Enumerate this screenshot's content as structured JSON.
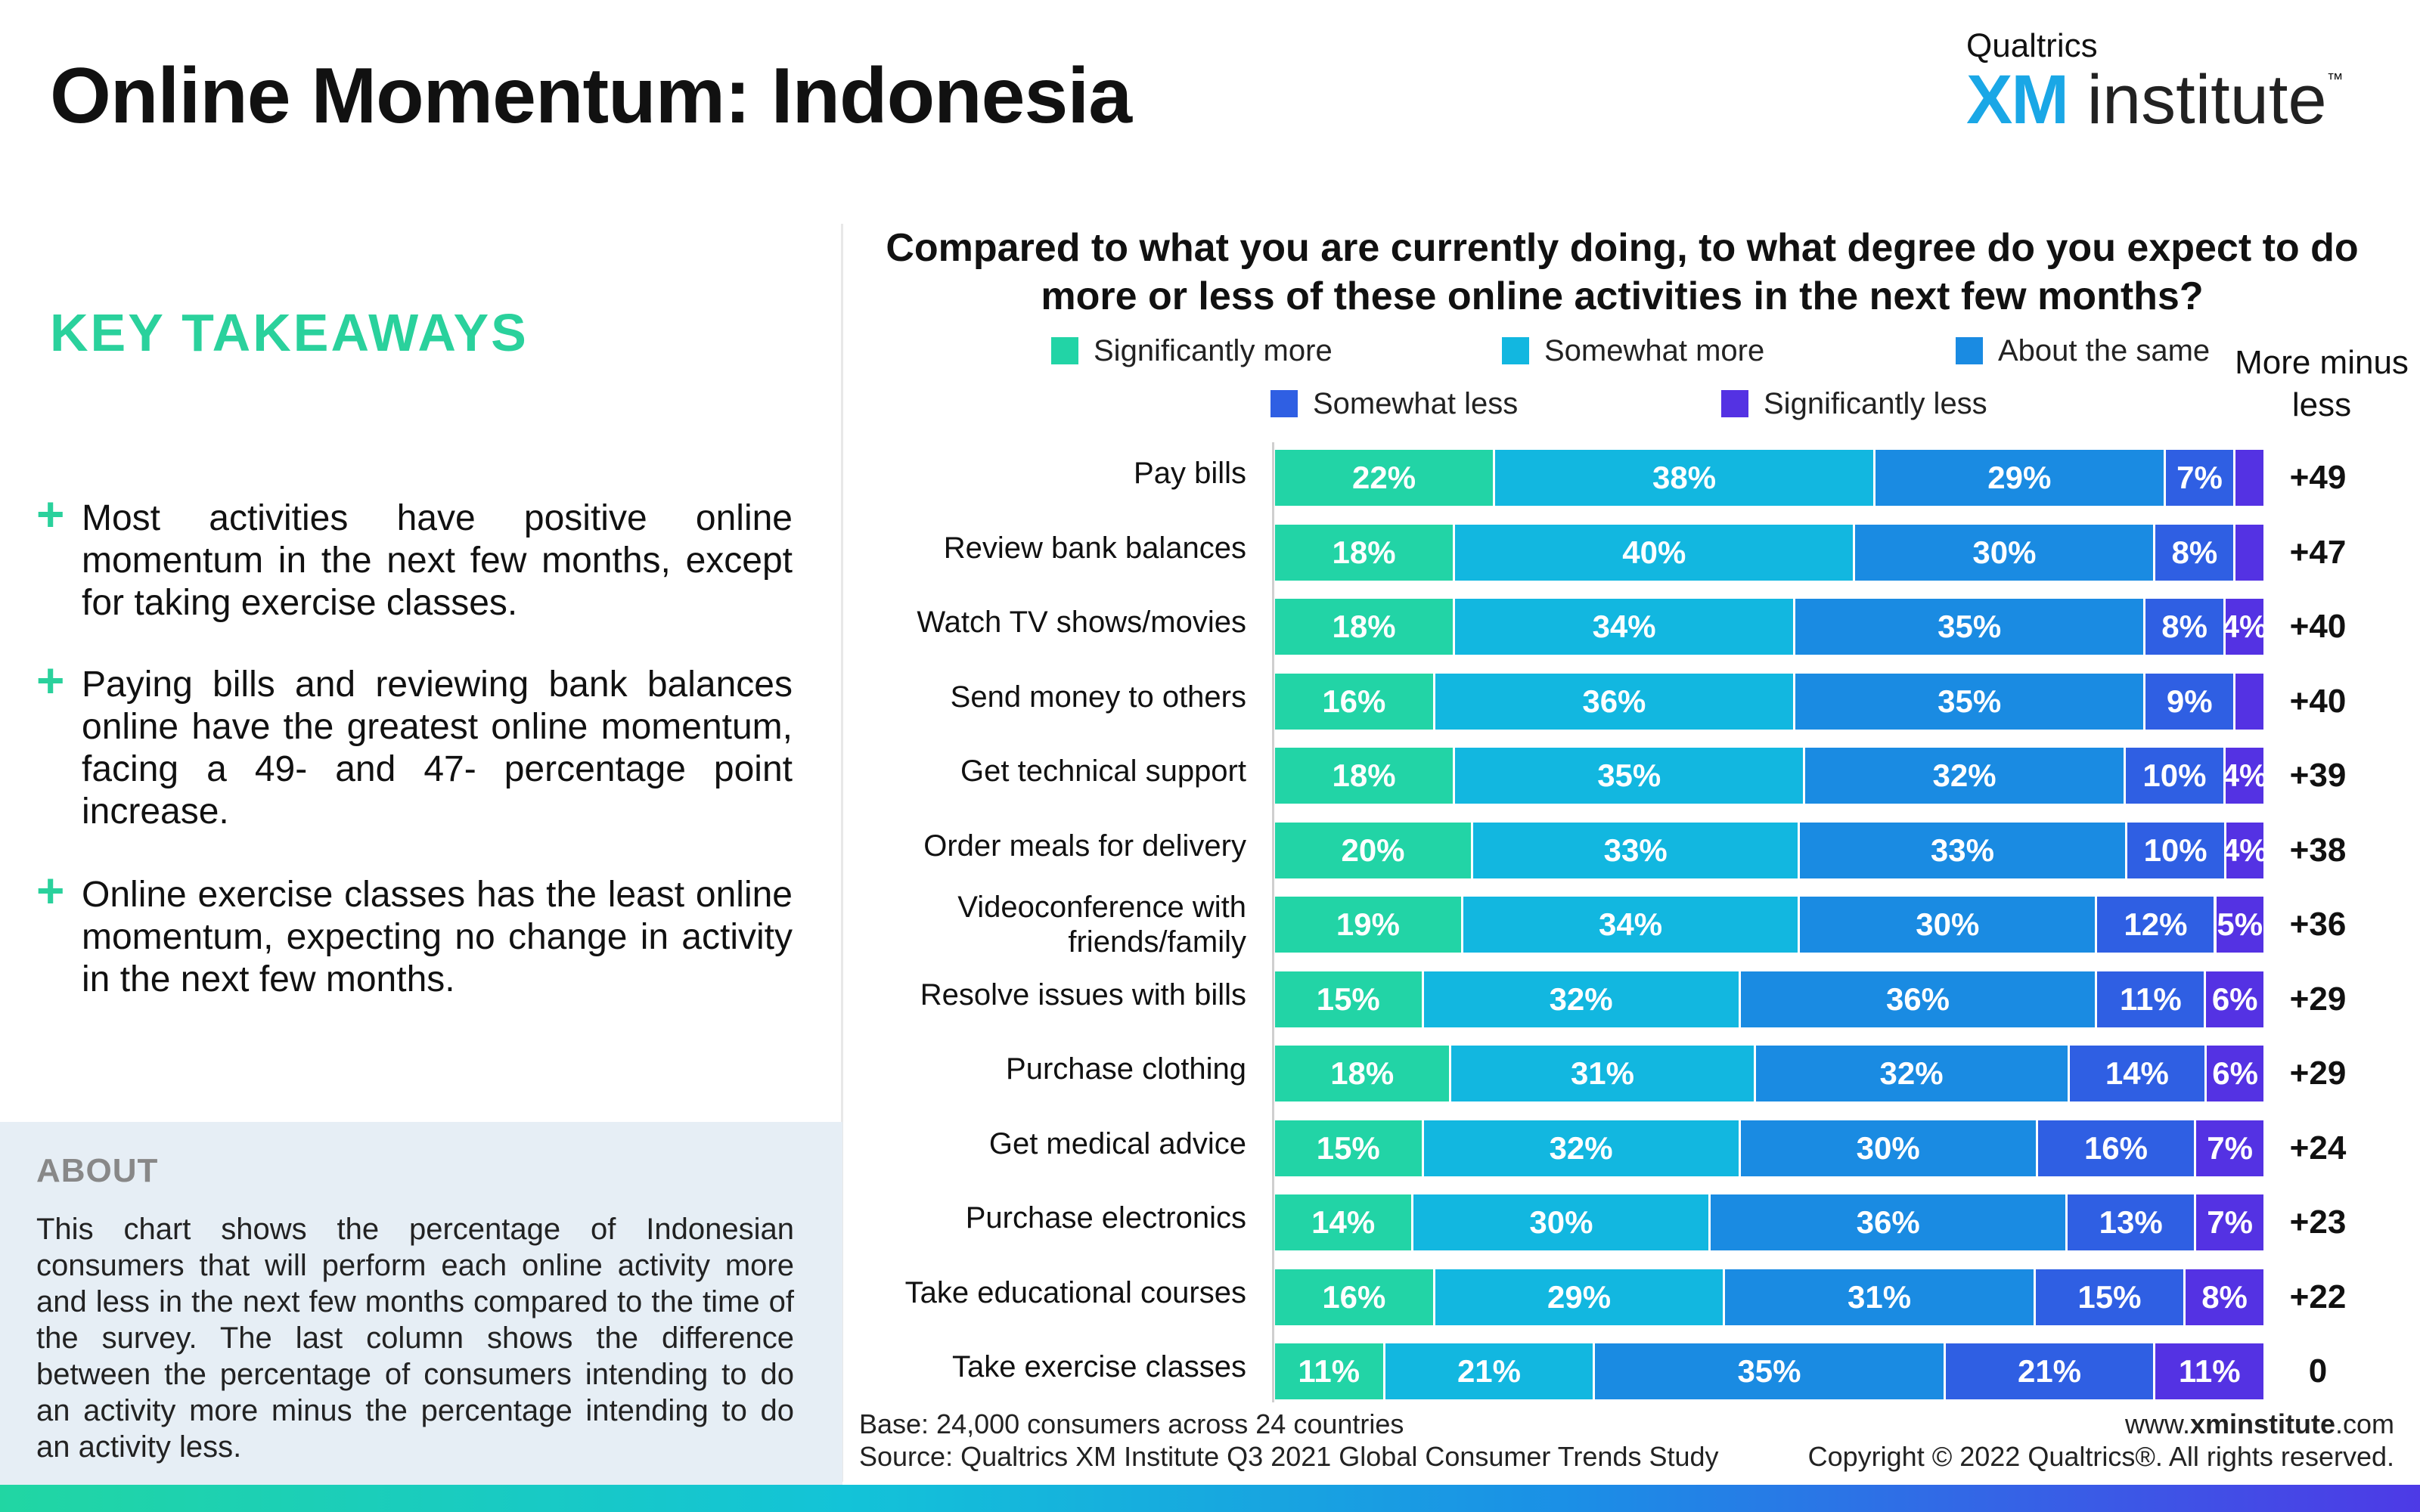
{
  "page": {
    "title": "Online Momentum: Indonesia"
  },
  "logo": {
    "top": "Qualtrics",
    "xm": "XM",
    "institute": "institute",
    "tm": "™"
  },
  "takeaways": {
    "heading": "KEY TAKEAWAYS",
    "items": [
      "Most activities have positive online momentum in the next few months, except for taking exercise classes.",
      "Paying bills and reviewing bank balances online have the greatest online momentum, facing a 49- and 47- percentage point increase.",
      "Online exercise classes has the least online momentum, expecting no change in activity in the next few months."
    ]
  },
  "about": {
    "heading": "ABOUT",
    "text": "This chart shows the percentage of Indonesian consumers that will perform each online activity more and less in the next few months compared to the time of the survey. The last column shows the difference between the percentage of consumers intending to do an activity more minus the percentage intending to do an activity less."
  },
  "footer": {
    "base": "Base: 24,000 consumers across 24 countries",
    "source": "Source: Qualtrics XM Institute Q3 2021 Global Consumer Trends Study",
    "url_pre": "www.",
    "url_bold": "xminstitute",
    "url_post": ".com",
    "copyright": "Copyright © 2022 Qualtrics®. All rights reserved."
  },
  "chart_data": {
    "type": "bar",
    "orientation": "horizontal",
    "stacked": true,
    "title": "Compared to what you are currently doing, to what degree do you expect to do more or less of these online activities in the next few months?",
    "net_header": "More minus less",
    "categories": [
      "Pay bills",
      "Review bank balances",
      "Watch TV shows/movies",
      "Send money to others",
      "Get technical support",
      "Order meals for delivery",
      "Videoconference with friends/family",
      "Resolve issues with bills",
      "Purchase clothing",
      "Get medical advice",
      "Purchase electronics",
      "Take educational courses",
      "Take exercise classes"
    ],
    "series": [
      {
        "name": "Significantly more",
        "color": "#22d4a6",
        "values": [
          22,
          18,
          18,
          16,
          18,
          20,
          19,
          15,
          18,
          15,
          14,
          16,
          11
        ]
      },
      {
        "name": "Somewhat more",
        "color": "#12b7e0",
        "values": [
          38,
          40,
          34,
          36,
          35,
          33,
          34,
          32,
          31,
          32,
          30,
          29,
          21
        ]
      },
      {
        "name": "About the same",
        "color": "#1a8be2",
        "values": [
          29,
          30,
          35,
          35,
          32,
          33,
          30,
          36,
          32,
          30,
          36,
          31,
          35
        ]
      },
      {
        "name": "Somewhat less",
        "color": "#2f5fe3",
        "values": [
          7,
          8,
          8,
          9,
          10,
          10,
          12,
          11,
          14,
          16,
          13,
          15,
          21
        ]
      },
      {
        "name": "Significantly less",
        "color": "#5432e3",
        "values": [
          3,
          3,
          4,
          3,
          4,
          4,
          5,
          6,
          6,
          7,
          7,
          8,
          11
        ]
      }
    ],
    "net": [
      "+49",
      "+47",
      "+40",
      "+40",
      "+39",
      "+38",
      "+36",
      "+29",
      "+29",
      "+24",
      "+23",
      "+22",
      "0"
    ],
    "xlim": [
      0,
      100
    ],
    "legend_position": "top"
  }
}
